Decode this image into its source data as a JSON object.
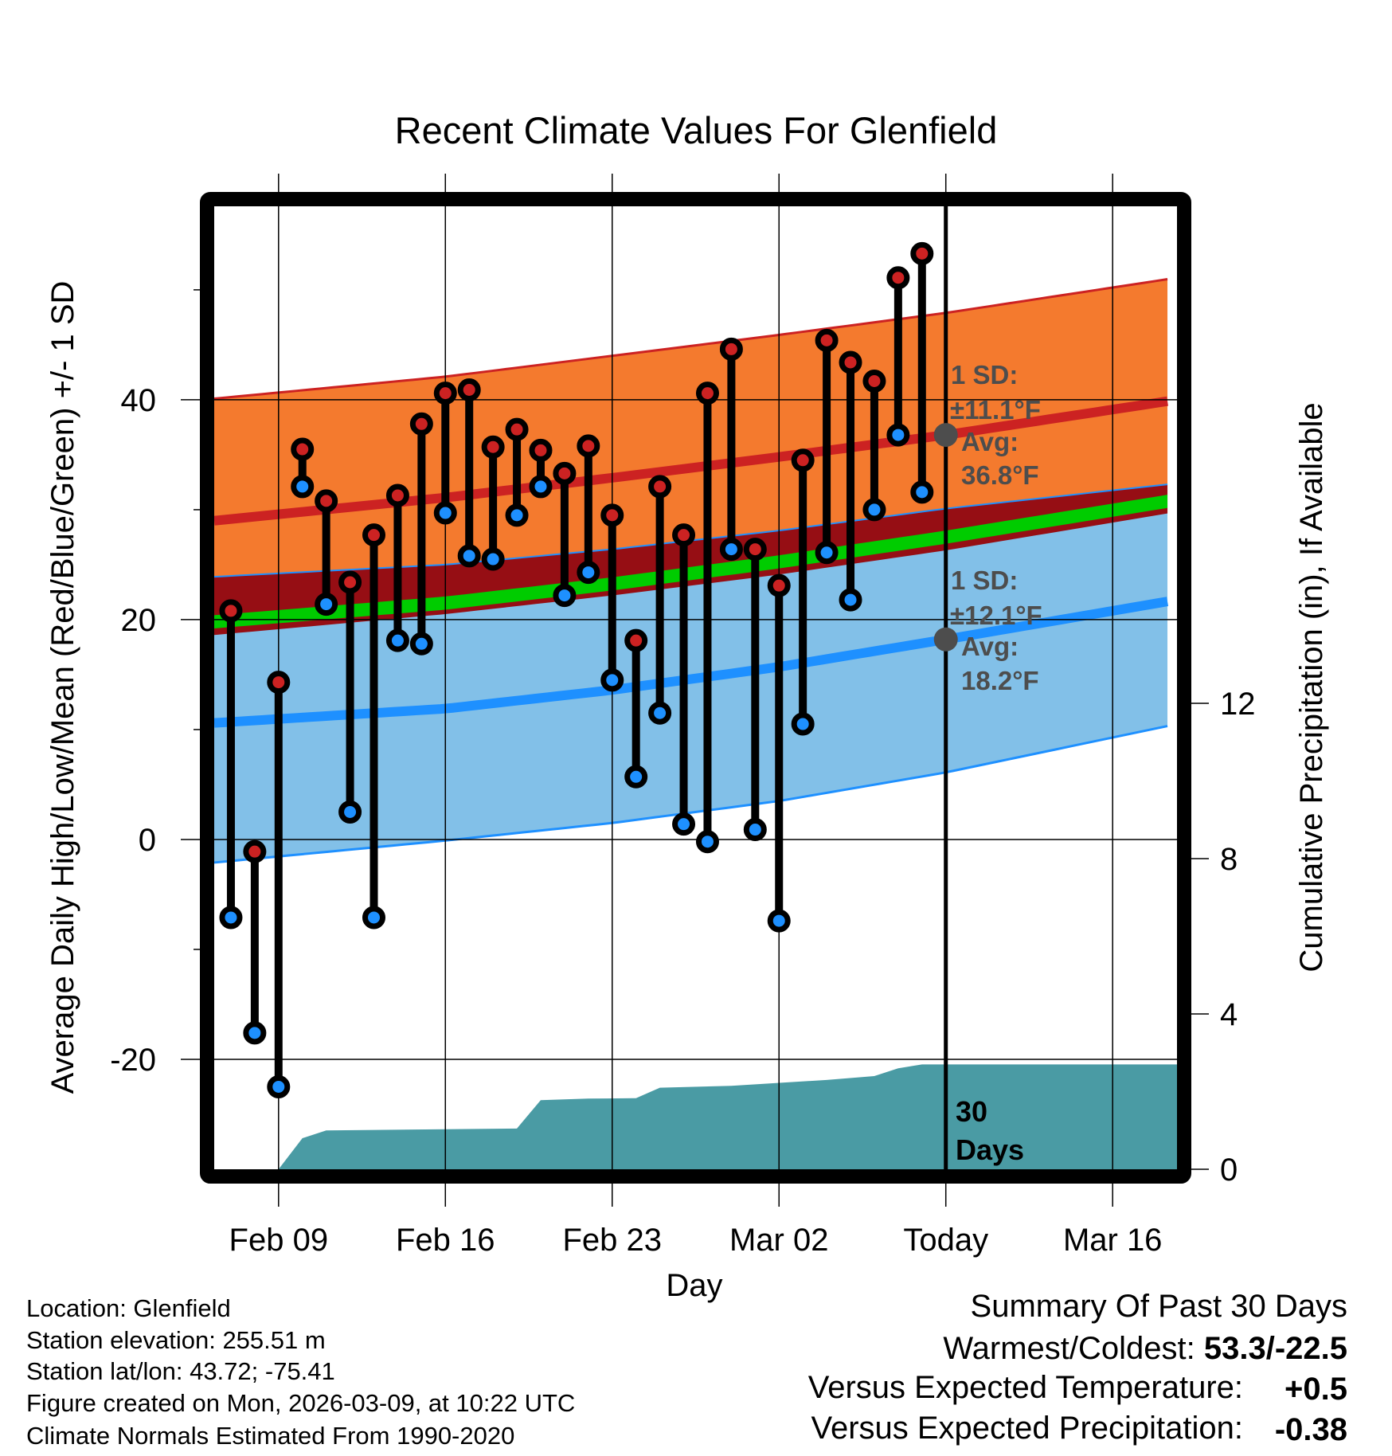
{
  "chart_data": {
    "type": "line",
    "title": "Recent Climate Values For Glenfield",
    "xlabel": "Day",
    "ylabel": "Average Daily High/Low/Mean (Red/Blue/Green) +/- 1 SD",
    "ylabel_right": "Cumulative Precipitation (in), If Available",
    "xlim_days_from_feb09": [
      -2.7,
      37.7
    ],
    "ylim": [
      -30,
      57.6
    ],
    "ylim_right": [
      0,
      24.8
    ],
    "x_ticks": [
      {
        "label": "Feb 09",
        "day": 0
      },
      {
        "label": "Feb 16",
        "day": 7
      },
      {
        "label": "Feb 23",
        "day": 14
      },
      {
        "label": "Mar 02",
        "day": 21
      },
      {
        "label": "Today",
        "day": 28
      },
      {
        "label": "Mar 16",
        "day": 35
      }
    ],
    "y_ticks": [
      "40",
      "20",
      "0",
      "-20"
    ],
    "y_tick_values": [
      40,
      20,
      0,
      -20
    ],
    "y_minor_ticks": [
      50,
      30,
      10,
      -10
    ],
    "y_ticks_right": [
      "12",
      "8",
      "4",
      "0"
    ],
    "y_tick_values_right": [
      12,
      8,
      4,
      0
    ],
    "grid": true,
    "today_day": 28,
    "observations": {
      "dates": [
        "Feb 07",
        "Feb 08",
        "Feb 09",
        "Feb 10",
        "Feb 11",
        "Feb 12",
        "Feb 13",
        "Feb 14",
        "Feb 15",
        "Feb 16",
        "Feb 17",
        "Feb 18",
        "Feb 19",
        "Feb 20",
        "Feb 21",
        "Feb 22",
        "Feb 23",
        "Feb 24",
        "Feb 25",
        "Feb 26",
        "Feb 27",
        "Feb 28",
        "Mar 01",
        "Mar 02",
        "Mar 03",
        "Mar 04",
        "Mar 05",
        "Mar 06",
        "Mar 07",
        "Mar 08"
      ],
      "days": [
        -2,
        -1,
        0,
        1,
        2,
        3,
        4,
        5,
        6,
        7,
        8,
        9,
        10,
        11,
        12,
        13,
        14,
        15,
        16,
        17,
        18,
        19,
        20,
        21,
        22,
        23,
        24,
        25,
        26,
        27
      ],
      "high": [
        20.8,
        -1.1,
        14.3,
        35.5,
        30.8,
        23.4,
        27.7,
        31.3,
        37.8,
        40.6,
        40.9,
        35.7,
        37.3,
        35.4,
        33.3,
        35.8,
        29.5,
        18.1,
        32.1,
        27.7,
        40.6,
        44.6,
        26.4,
        23.1,
        34.5,
        45.4,
        43.4,
        41.7,
        51.1,
        53.3
      ],
      "low": [
        -7.1,
        -17.6,
        -22.5,
        32.1,
        21.4,
        2.5,
        -7.1,
        18.1,
        17.8,
        29.7,
        25.8,
        25.5,
        29.5,
        32.1,
        22.2,
        24.3,
        14.5,
        5.7,
        11.5,
        1.4,
        -0.2,
        26.4,
        0.9,
        -7.4,
        10.5,
        26.1,
        21.8,
        30.0,
        36.8,
        31.6
      ]
    },
    "normals": {
      "days": [
        -2.7,
        7,
        14,
        21,
        28,
        37.7
      ],
      "high_avg": [
        29.0,
        31.1,
        32.9,
        34.8,
        36.8,
        40.0
      ],
      "high_upper": [
        40.1,
        42.1,
        44.0,
        45.9,
        47.9,
        51.1
      ],
      "high_lower": [
        18.6,
        20.5,
        22.2,
        24.1,
        26.3,
        29.8
      ],
      "low_avg": [
        10.6,
        11.9,
        13.6,
        15.7,
        18.2,
        21.8
      ],
      "low_upper": [
        23.9,
        25.0,
        26.4,
        28.1,
        30.1,
        32.4
      ],
      "low_lower": [
        -2.1,
        -0.1,
        1.5,
        3.5,
        6.1,
        10.5
      ],
      "mean_band_halfwidth": 0.6
    },
    "precipitation": {
      "days": [
        0,
        1,
        2,
        10,
        11,
        13,
        15,
        16,
        19,
        23,
        25,
        26,
        27,
        37.7
      ],
      "cumulative": [
        0,
        0.8,
        1.0,
        1.05,
        1.78,
        1.82,
        1.83,
        2.1,
        2.15,
        2.3,
        2.4,
        2.6,
        2.7,
        2.7
      ]
    },
    "annotations": {
      "high_sd": "1 SD:",
      "high_sd_value": "±11.1°F",
      "high_avg": "Avg:",
      "high_avg_value": "36.8°F",
      "low_sd": "1 SD:",
      "low_sd_value": "±12.1°F",
      "low_avg": "Avg:",
      "low_avg_value": "18.2°F",
      "window_count": "30",
      "window_unit": "Days"
    },
    "colors": {
      "high_band": "#F47A2E",
      "high_line": "#CC2222",
      "overlap_band": "#960E14",
      "mean_band": "#00CC00",
      "low_band": "#82C0E8",
      "low_line": "#1E90FF",
      "precip": "#4A9BA4",
      "high_dot": "#CC2222",
      "low_dot": "#1E90FF",
      "annotation": "#4D4D4D"
    }
  },
  "info": {
    "location": "Location: Glenfield",
    "elevation": "Station elevation: 255.51 m",
    "latlon": "Station lat/lon: 43.72; -75.41",
    "created": "Figure created on Mon, 2026-03-09, at 10:22 UTC",
    "normals": "Climate Normals Estimated From 1990-2020"
  },
  "summary": {
    "title": "Summary Of Past 30 Days",
    "warmest_coldest_label": "Warmest/Coldest: ",
    "warmest_coldest_value": "53.3/-22.5",
    "temp_label": "Versus Expected Temperature:",
    "temp_value": "+0.5",
    "temp_color": "#CC2222",
    "precip_label": "Versus Expected Precipitation:",
    "precip_value": "-0.38",
    "precip_color": "#A0522D"
  }
}
